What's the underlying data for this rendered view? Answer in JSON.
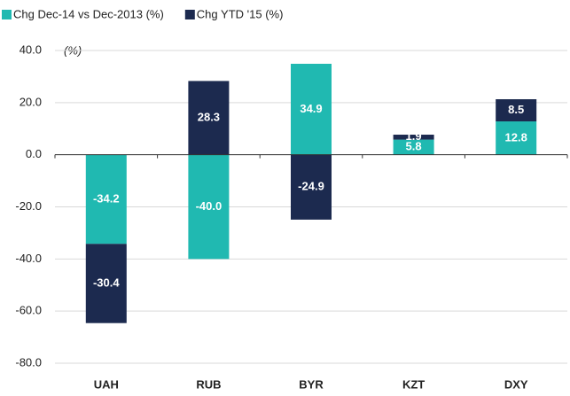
{
  "chart_data": {
    "type": "stacked-bar",
    "annotation": "(%)",
    "categories": [
      "UAH",
      "RUB",
      "BYR",
      "KZT",
      "DXY"
    ],
    "series": [
      {
        "name": "Chg Dec-14 vs Dec-2013 (%)",
        "color": "#20b9b1",
        "values": [
          -34.2,
          -40.0,
          34.9,
          5.8,
          12.8
        ],
        "value_labels": [
          "-34.2",
          "-40.0",
          "34.9",
          "5.8",
          "12.8"
        ]
      },
      {
        "name": "Chg YTD '15 (%)",
        "color": "#1c2a4f",
        "values": [
          -30.4,
          28.3,
          -24.9,
          1.9,
          8.5
        ],
        "value_labels": [
          "-30.4",
          "28.3",
          "-24.9",
          "1.9",
          "8.5"
        ]
      }
    ],
    "ylim": [
      -80,
      40
    ],
    "yticks": [
      {
        "value": 40,
        "label": "40.0"
      },
      {
        "value": 20,
        "label": "20.0"
      },
      {
        "value": 0,
        "label": "0.0"
      },
      {
        "value": -20,
        "label": "-20.0"
      },
      {
        "value": -40,
        "label": "-40.0"
      },
      {
        "value": -60,
        "label": "-60.0"
      },
      {
        "value": -80,
        "label": "-80.0"
      }
    ],
    "grid": true,
    "legend": "top-left"
  }
}
